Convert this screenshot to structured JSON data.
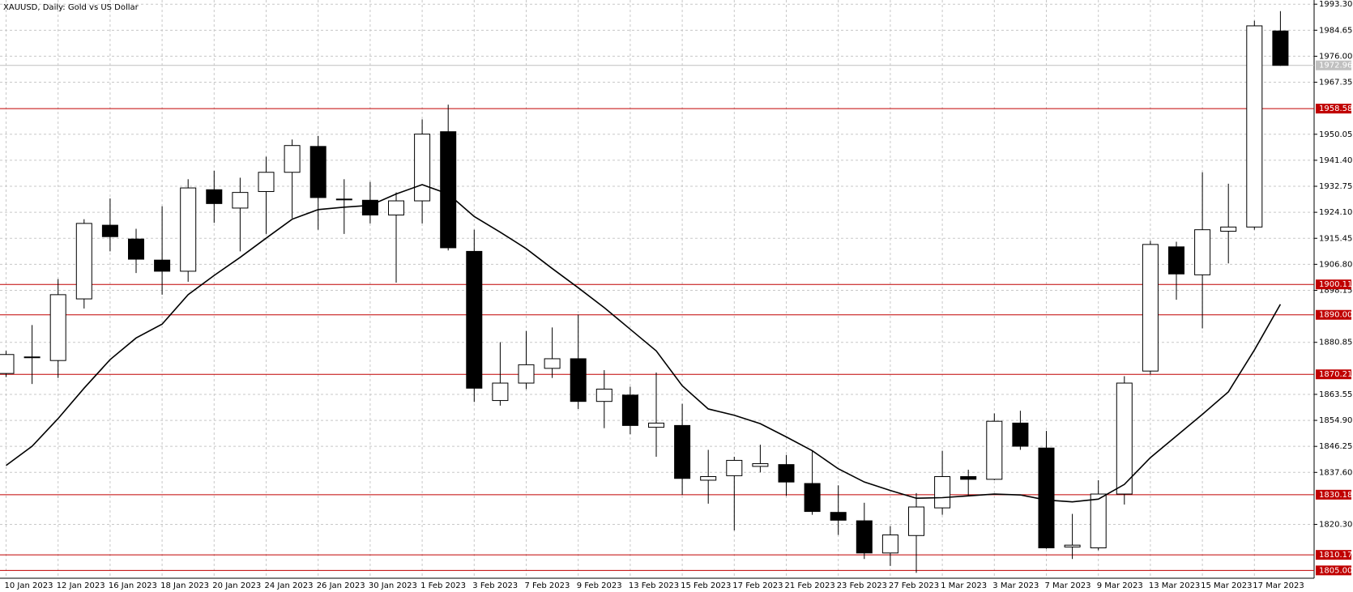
{
  "chart_data": {
    "type": "candlestick",
    "title": "XAUUSD, Daily:  Gold vs US Dollar",
    "categories": [
      "10 Jan 2023",
      null,
      "12 Jan 2023",
      null,
      "16 Jan 2023",
      null,
      "18 Jan 2023",
      null,
      "20 Jan 2023",
      null,
      "24 Jan 2023",
      null,
      "26 Jan 2023",
      null,
      "30 Jan 2023",
      null,
      "1 Feb 2023",
      null,
      "3 Feb 2023",
      null,
      "7 Feb 2023",
      null,
      "9 Feb 2023",
      null,
      "13 Feb 2023",
      null,
      "15 Feb 2023",
      null,
      "17 Feb 2023",
      null,
      "21 Feb 2023",
      null,
      "23 Feb 2023",
      null,
      "27 Feb 2023",
      null,
      "1 Mar 2023",
      null,
      "3 Mar 2023",
      null,
      "7 Mar 2023",
      null,
      "9 Mar 2023",
      null,
      "13 Mar 2023",
      null,
      "15 Mar 2023",
      null,
      "17 Mar 2023",
      null
    ],
    "open": [
      1870.5,
      1875.9,
      1874.8,
      1895.3,
      1919.8,
      1915.2,
      1908.2,
      1904.5,
      1931.6,
      1925.5,
      1931.0,
      1937.4,
      1946.0,
      1928.5,
      1928.1,
      1923.2,
      1927.9,
      1950.9,
      1911.1,
      1861.5,
      1867.3,
      1872.2,
      1875.4,
      1861.2,
      1863.3,
      1852.6,
      1853.2,
      1835.0,
      1836.5,
      1839.6,
      1840.2,
      1833.9,
      1824.3,
      1821.5,
      1810.8,
      1816.6,
      1825.8,
      1836.2,
      1835.3,
      1854.0,
      1845.7,
      1812.8,
      1812.5,
      1830.4,
      1871.3,
      1912.6,
      1903.3,
      1917.8,
      1919.2,
      1984.4
    ],
    "high": [
      1878.0,
      1886.6,
      1901.9,
      1921.8,
      1928.7,
      1918.6,
      1926.1,
      1935.1,
      1937.9,
      1935.6,
      1942.6,
      1948.3,
      1949.5,
      1935.1,
      1934.2,
      1930.7,
      1955.0,
      1959.9,
      1918.3,
      1880.9,
      1884.6,
      1885.8,
      1890.1,
      1871.6,
      1866.1,
      1870.8,
      1860.4,
      1845.1,
      1842.8,
      1846.8,
      1843.4,
      1844.8,
      1833.3,
      1827.5,
      1819.7,
      1830.7,
      1844.8,
      1838.5,
      1857.2,
      1858.1,
      1851.4,
      1823.8,
      1835.0,
      1869.6,
      1914.6,
      1914.3,
      1937.4,
      1933.6,
      1987.8,
      1991.0
    ],
    "low": [
      1869.3,
      1867.0,
      1869.0,
      1892.1,
      1911.1,
      1903.9,
      1896.7,
      1901.0,
      1920.6,
      1911.1,
      1916.9,
      1922.1,
      1918.3,
      1916.9,
      1920.4,
      1900.7,
      1920.4,
      1911.4,
      1861.0,
      1859.8,
      1865.3,
      1869.0,
      1858.7,
      1852.3,
      1850.3,
      1842.8,
      1830.1,
      1827.2,
      1818.3,
      1837.6,
      1829.8,
      1823.5,
      1816.8,
      1808.8,
      1806.5,
      1804.2,
      1823.5,
      1829.8,
      1835.0,
      1845.1,
      1812.2,
      1808.8,
      1811.7,
      1826.9,
      1870.2,
      1895.0,
      1885.5,
      1907.1,
      1918.3,
      1972.8
    ],
    "close": [
      1876.8,
      1876.0,
      1896.7,
      1920.4,
      1916.0,
      1908.5,
      1904.5,
      1932.2,
      1927.0,
      1930.7,
      1937.4,
      1946.3,
      1929.0,
      1928.4,
      1923.2,
      1927.9,
      1950.1,
      1912.3,
      1865.6,
      1867.3,
      1873.4,
      1875.4,
      1861.2,
      1865.3,
      1853.2,
      1854.0,
      1835.6,
      1836.2,
      1841.6,
      1840.5,
      1834.4,
      1824.6,
      1821.7,
      1810.8,
      1816.8,
      1826.1,
      1836.2,
      1835.3,
      1854.6,
      1846.3,
      1812.5,
      1813.4,
      1830.4,
      1867.3,
      1913.4,
      1903.6,
      1918.3,
      1919.2,
      1986.1,
      1972.96
    ],
    "ma": [
      1839.9,
      1846.3,
      1855.5,
      1865.6,
      1875.1,
      1882.3,
      1886.9,
      1896.7,
      1903.1,
      1909.1,
      1915.5,
      1921.8,
      1925.0,
      1925.8,
      1926.4,
      1930.2,
      1933.3,
      1930.2,
      1922.7,
      1917.5,
      1912.0,
      1905.4,
      1899.0,
      1892.4,
      1885.2,
      1878.0,
      1866.4,
      1858.7,
      1856.6,
      1853.8,
      1849.4,
      1844.8,
      1838.8,
      1834.4,
      1831.6,
      1829.0,
      1829.2,
      1829.8,
      1830.4,
      1830.1,
      1828.4,
      1827.8,
      1828.7,
      1833.6,
      1842.5,
      1849.7,
      1856.9,
      1864.4,
      1878.3,
      1893.5
    ],
    "bull_color": "#ffffff",
    "bear_color": "#000000",
    "ma_color": "#000000",
    "ylim": [
      1802.4,
      1994.7
    ],
    "yticks": [
      {
        "value": 1993.3,
        "label": "1993.30"
      },
      1984.65,
      {
        "value": 1976,
        "label": "1976.00"
      },
      1967.35,
      1950.05,
      {
        "value": 1941.4,
        "label": "1941.40"
      },
      1932.75,
      {
        "value": 1924.1,
        "label": "1924.10"
      },
      1915.45,
      {
        "value": 1906.8,
        "label": "1906.80"
      },
      1898.15,
      1880.85,
      1863.55,
      {
        "value": 1854.9,
        "label": "1854.90"
      },
      1846.25,
      {
        "value": 1837.6,
        "label": "1837.60"
      },
      {
        "value": 1820.3,
        "label": "1820.30"
      }
    ],
    "grid": true,
    "hlines": [
      1958.58,
      1900.11,
      {
        "value": 1890,
        "label": "1890.00"
      },
      1870.21,
      1830.18,
      1810.17,
      {
        "value": 1805,
        "label": "1805.00"
      }
    ],
    "hline_color": "#c00000",
    "last_price": 1972.96,
    "last_price_color": "#c0c0c0"
  }
}
